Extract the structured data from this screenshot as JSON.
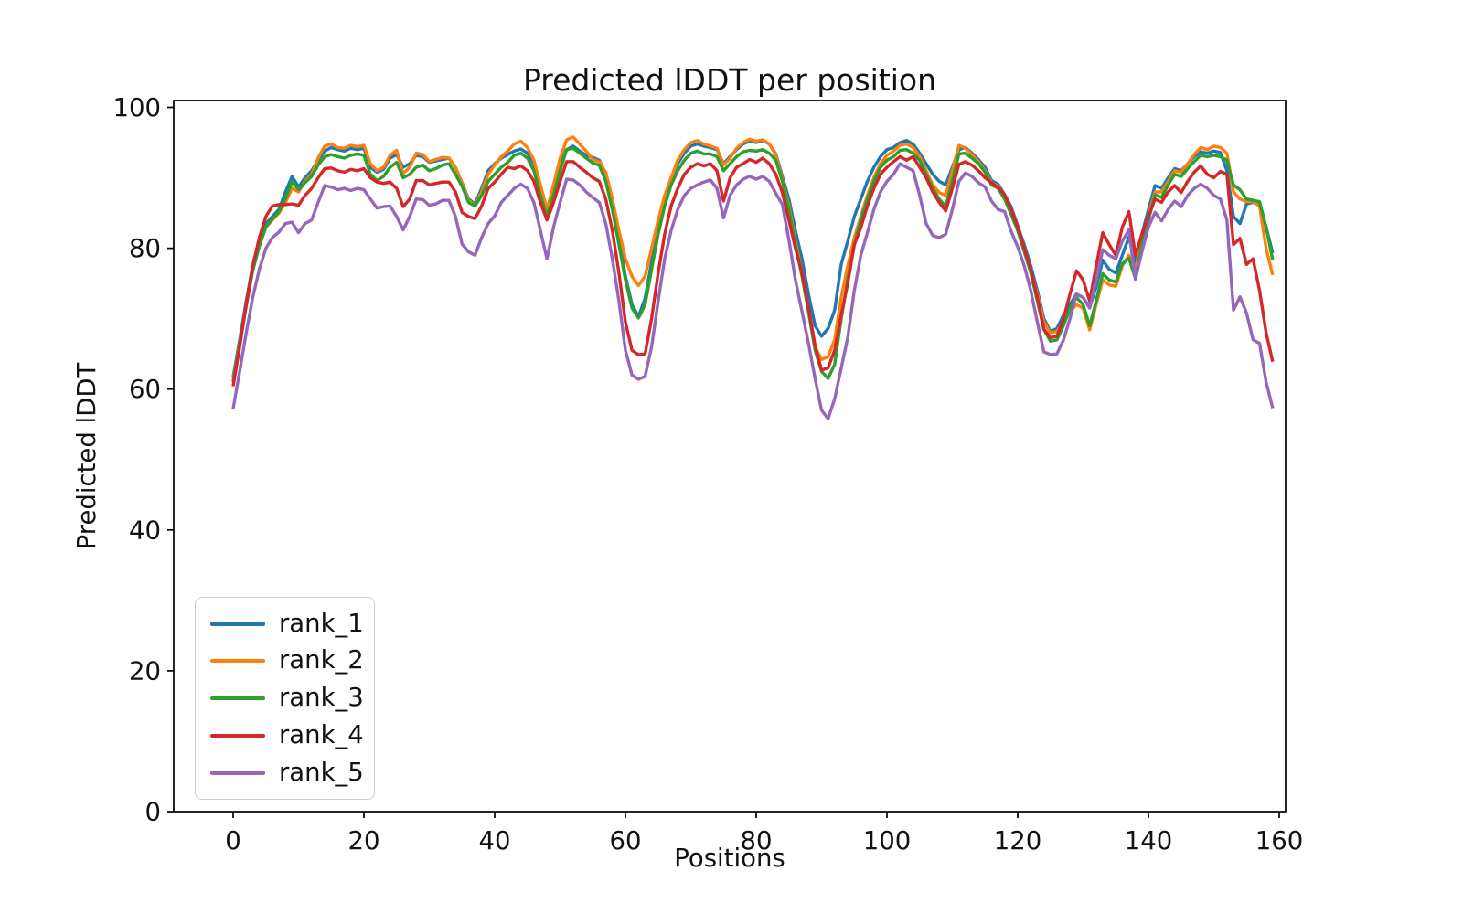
{
  "figure": {
    "title": "Predicted lDDT per position",
    "xlabel": "Positions",
    "ylabel": "Predicted lDDT",
    "background": "#ffffff"
  },
  "chart_data": {
    "type": "line",
    "title": "Predicted lDDT per position",
    "xlabel": "Positions",
    "ylabel": "Predicted lDDT",
    "xlim": [
      -9,
      161
    ],
    "ylim": [
      0,
      101
    ],
    "xticks": [
      0,
      20,
      40,
      60,
      80,
      100,
      120,
      140,
      160
    ],
    "yticks": [
      0,
      20,
      40,
      60,
      80,
      100
    ],
    "grid": false,
    "legend_position": "lower-left",
    "x": {
      "start": 0,
      "step": 1,
      "count": 160
    },
    "series": [
      {
        "name": "rank_1",
        "color": "#1f77b4",
        "values": [
          61.7,
          67.0,
          72.5,
          77.5,
          81.0,
          83.5,
          84.5,
          85.5,
          88.0,
          90.2,
          88.7,
          90.0,
          91.0,
          92.5,
          93.8,
          94.3,
          94.0,
          93.8,
          94.2,
          94.0,
          94.2,
          91.5,
          90.8,
          91.2,
          92.8,
          93.3,
          91.5,
          92.0,
          93.2,
          93.0,
          92.2,
          92.4,
          92.6,
          92.8,
          91.5,
          89.3,
          87.0,
          86.3,
          88.5,
          91.0,
          92.0,
          92.8,
          93.3,
          93.8,
          94.1,
          93.5,
          92.0,
          88.5,
          85.0,
          88.5,
          92.0,
          94.0,
          94.5,
          93.8,
          93.2,
          92.9,
          92.5,
          90.5,
          86.5,
          81.5,
          76.0,
          72.0,
          70.3,
          72.9,
          78.0,
          83.0,
          87.0,
          90.0,
          92.0,
          93.5,
          94.5,
          94.8,
          94.5,
          94.3,
          94.0,
          92.0,
          93.0,
          94.0,
          94.8,
          95.2,
          95.0,
          95.3,
          94.8,
          93.4,
          90.2,
          87.0,
          82.5,
          78.5,
          73.5,
          69.0,
          67.5,
          68.6,
          71.2,
          77.7,
          81.0,
          84.5,
          87.0,
          89.5,
          91.5,
          93.0,
          94.0,
          94.3,
          95.0,
          95.3,
          94.8,
          93.5,
          92.0,
          90.5,
          89.5,
          89.0,
          91.5,
          94.0,
          94.3,
          93.5,
          92.6,
          91.5,
          89.6,
          89.1,
          87.6,
          85.9,
          83.2,
          80.5,
          77.5,
          74.0,
          70.0,
          68.2,
          68.6,
          70.5,
          72.0,
          73.5,
          73.0,
          71.6,
          74.5,
          78.3,
          77.0,
          76.5,
          79.0,
          81.6,
          77.9,
          82.0,
          85.5,
          88.9,
          88.5,
          90.0,
          91.3,
          91.0,
          92.0,
          93.0,
          93.7,
          93.5,
          93.8,
          93.6,
          91.0,
          84.5,
          83.5,
          86.3,
          86.5,
          86.3,
          83.0,
          79.3
        ]
      },
      {
        "name": "rank_2",
        "color": "#ff7f0e",
        "values": [
          61.3,
          66.5,
          72.0,
          77.0,
          80.5,
          83.0,
          84.0,
          85.0,
          86.5,
          88.5,
          88.0,
          89.5,
          90.5,
          92.8,
          94.5,
          94.8,
          94.3,
          94.2,
          94.6,
          94.4,
          94.6,
          92.0,
          91.0,
          91.5,
          93.2,
          93.9,
          90.6,
          91.5,
          93.5,
          93.3,
          92.3,
          92.6,
          92.9,
          92.8,
          91.5,
          89.2,
          86.8,
          86.0,
          88.0,
          90.5,
          91.8,
          93.0,
          93.8,
          94.8,
          95.2,
          94.3,
          92.5,
          89.0,
          85.5,
          89.0,
          92.8,
          95.4,
          95.8,
          94.8,
          93.8,
          92.6,
          92.3,
          90.8,
          87.0,
          82.5,
          78.5,
          76.0,
          74.7,
          76.0,
          80.0,
          84.0,
          87.5,
          90.0,
          92.5,
          94.0,
          95.0,
          95.3,
          94.8,
          94.5,
          94.2,
          91.8,
          92.8,
          94.2,
          95.0,
          95.5,
          95.2,
          95.4,
          94.8,
          93.2,
          89.8,
          86.0,
          81.0,
          76.5,
          71.5,
          66.0,
          64.2,
          64.6,
          67.0,
          73.0,
          77.5,
          81.5,
          84.5,
          87.5,
          90.0,
          92.0,
          93.2,
          93.8,
          94.6,
          94.8,
          94.3,
          93.0,
          91.0,
          89.0,
          87.9,
          87.5,
          91.0,
          94.6,
          94.2,
          93.3,
          92.3,
          91.0,
          89.3,
          88.8,
          87.3,
          85.5,
          83.0,
          80.0,
          76.8,
          73.5,
          69.5,
          68.0,
          68.2,
          69.5,
          71.0,
          72.0,
          71.5,
          68.4,
          72.0,
          75.5,
          74.8,
          74.6,
          77.5,
          79.0,
          77.0,
          81.0,
          84.5,
          88.0,
          88.0,
          89.5,
          91.0,
          90.8,
          92.0,
          93.3,
          94.3,
          94.0,
          94.5,
          94.3,
          93.5,
          88.0,
          87.0,
          86.6,
          86.6,
          86.0,
          80.0,
          76.2
        ]
      },
      {
        "name": "rank_3",
        "color": "#2ca02c",
        "values": [
          61.0,
          66.3,
          71.8,
          76.8,
          80.3,
          83.0,
          84.2,
          85.2,
          87.0,
          89.5,
          88.3,
          89.3,
          90.2,
          91.8,
          93.0,
          93.3,
          93.0,
          92.8,
          93.2,
          93.4,
          93.2,
          90.5,
          89.6,
          90.2,
          91.5,
          92.2,
          90.0,
          90.5,
          91.5,
          91.8,
          91.0,
          91.3,
          91.8,
          92.0,
          90.5,
          88.8,
          86.5,
          86.0,
          87.5,
          89.5,
          90.5,
          91.5,
          92.2,
          93.2,
          93.5,
          92.8,
          91.0,
          87.5,
          84.5,
          87.5,
          91.0,
          94.0,
          94.2,
          93.5,
          92.8,
          92.1,
          91.8,
          89.5,
          85.5,
          80.5,
          75.5,
          71.5,
          70.1,
          72.0,
          77.0,
          82.0,
          86.0,
          89.0,
          91.0,
          92.5,
          93.5,
          93.8,
          93.4,
          93.4,
          93.0,
          91.0,
          92.0,
          93.0,
          93.7,
          93.9,
          93.8,
          94.0,
          93.5,
          92.5,
          89.5,
          85.5,
          80.5,
          76.0,
          71.0,
          65.5,
          62.5,
          61.5,
          63.5,
          70.0,
          75.5,
          80.5,
          84.0,
          87.0,
          89.5,
          91.5,
          92.5,
          93.0,
          93.9,
          94.0,
          93.5,
          92.5,
          90.5,
          88.5,
          87.0,
          85.9,
          89.5,
          93.4,
          93.5,
          92.8,
          92.0,
          90.8,
          89.0,
          88.5,
          87.0,
          84.8,
          82.5,
          79.5,
          76.5,
          72.5,
          68.5,
          66.8,
          67.0,
          69.0,
          71.5,
          73.0,
          72.0,
          69.0,
          72.5,
          76.4,
          75.5,
          75.2,
          77.8,
          78.6,
          75.7,
          80.5,
          84.0,
          87.6,
          87.2,
          89.0,
          90.5,
          90.2,
          91.3,
          92.3,
          93.2,
          93.0,
          93.2,
          93.0,
          92.5,
          89.0,
          88.3,
          87.0,
          86.8,
          86.6,
          83.0,
          78.3
        ]
      },
      {
        "name": "rank_4",
        "color": "#d62728",
        "values": [
          60.4,
          66.0,
          72.0,
          77.5,
          81.5,
          84.5,
          86.0,
          86.2,
          86.2,
          86.3,
          86.1,
          87.5,
          88.5,
          90.0,
          91.3,
          91.4,
          91.0,
          90.8,
          91.2,
          91.0,
          91.3,
          90.0,
          89.4,
          89.2,
          89.4,
          88.5,
          85.9,
          87.0,
          89.6,
          89.6,
          89.0,
          89.2,
          89.4,
          89.4,
          88.0,
          85.1,
          84.5,
          84.2,
          86.0,
          88.5,
          89.4,
          90.5,
          91.5,
          91.3,
          91.7,
          91.0,
          89.5,
          86.5,
          84.0,
          86.5,
          89.5,
          92.3,
          92.3,
          91.5,
          90.8,
          90.0,
          89.5,
          87.0,
          82.5,
          76.5,
          69.5,
          65.5,
          64.9,
          65.0,
          70.0,
          76.5,
          82.0,
          86.0,
          88.5,
          90.5,
          91.5,
          92.0,
          91.7,
          92.0,
          91.0,
          86.7,
          90.0,
          91.5,
          92.0,
          92.6,
          92.2,
          92.8,
          92.0,
          90.5,
          87.9,
          84.0,
          80.0,
          76.5,
          71.5,
          66.2,
          62.7,
          63.0,
          65.5,
          70.5,
          75.0,
          80.5,
          82.9,
          86.0,
          88.5,
          90.5,
          91.5,
          92.3,
          93.0,
          92.5,
          93.0,
          91.5,
          90.0,
          88.0,
          86.5,
          85.3,
          88.5,
          91.9,
          92.3,
          91.8,
          91.0,
          90.0,
          89.3,
          88.6,
          87.6,
          85.5,
          83.0,
          80.0,
          77.0,
          73.0,
          68.5,
          67.3,
          67.5,
          70.0,
          73.5,
          76.8,
          75.5,
          72.5,
          77.5,
          82.2,
          80.5,
          79.0,
          83.0,
          85.2,
          79.0,
          82.0,
          84.5,
          87.0,
          86.5,
          88.0,
          88.9,
          87.9,
          89.5,
          90.8,
          91.7,
          90.5,
          90.0,
          90.9,
          90.5,
          80.5,
          81.4,
          77.7,
          78.5,
          74.0,
          68.0,
          63.9
        ]
      },
      {
        "name": "rank_5",
        "color": "#9467bd",
        "values": [
          57.2,
          62.5,
          68.0,
          73.0,
          77.0,
          80.0,
          81.5,
          82.3,
          83.5,
          83.7,
          82.2,
          83.5,
          84.0,
          86.5,
          88.9,
          88.7,
          88.3,
          88.5,
          88.2,
          88.5,
          88.3,
          87.0,
          85.7,
          85.9,
          86.0,
          84.5,
          82.6,
          84.5,
          87.0,
          86.9,
          86.1,
          86.3,
          86.8,
          86.8,
          84.5,
          80.6,
          79.5,
          79.0,
          81.5,
          83.5,
          84.6,
          86.5,
          87.5,
          88.5,
          89.1,
          88.5,
          86.5,
          82.5,
          78.5,
          83.0,
          86.5,
          89.8,
          89.7,
          89.0,
          88.0,
          87.2,
          86.5,
          83.5,
          78.5,
          72.5,
          65.5,
          62.0,
          61.4,
          61.8,
          66.0,
          72.5,
          78.5,
          82.5,
          85.5,
          87.5,
          88.5,
          89.0,
          89.4,
          89.7,
          88.5,
          84.3,
          87.5,
          89.0,
          89.8,
          90.2,
          89.8,
          90.2,
          89.5,
          87.8,
          86.2,
          81.2,
          75.5,
          71.0,
          66.5,
          61.5,
          57.0,
          55.8,
          58.6,
          63.0,
          67.3,
          74.0,
          79.0,
          82.2,
          85.5,
          88.0,
          89.5,
          90.5,
          92.0,
          91.5,
          91.0,
          87.5,
          83.5,
          81.8,
          81.5,
          82.0,
          85.5,
          89.5,
          90.7,
          90.2,
          89.3,
          88.7,
          86.7,
          85.5,
          85.2,
          82.4,
          80.2,
          77.5,
          74.0,
          69.5,
          65.3,
          64.9,
          65.0,
          67.0,
          70.0,
          73.5,
          73.0,
          71.5,
          75.5,
          79.8,
          79.0,
          78.5,
          81.0,
          82.6,
          75.6,
          79.5,
          83.0,
          85.1,
          83.9,
          85.5,
          86.7,
          85.9,
          87.5,
          88.5,
          89.1,
          88.5,
          87.5,
          87.0,
          84.0,
          71.2,
          73.1,
          70.8,
          67.0,
          66.5,
          61.0,
          57.3
        ]
      }
    ]
  }
}
